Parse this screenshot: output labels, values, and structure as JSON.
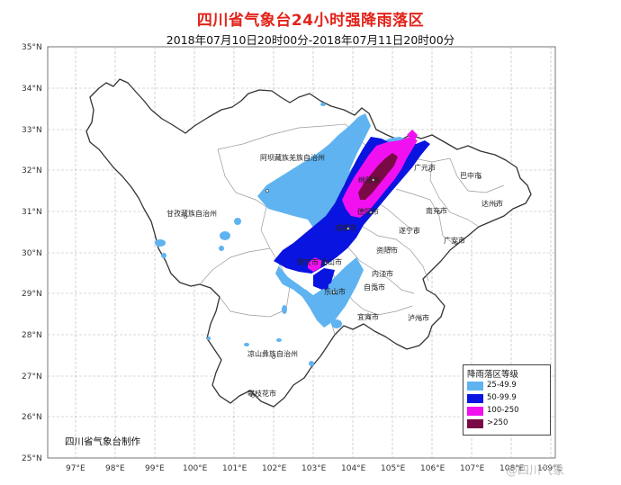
{
  "title": "四川省气象台24小时强降雨落区",
  "subtitle": "2018年07月10日20时00分-2018年07月11日20时00分",
  "credit": "四川省气象台制作",
  "watermark": "@四川气象",
  "lat_labels": [
    "35°N",
    "34°N",
    "33°N",
    "32°N",
    "31°N",
    "30°N",
    "29°N",
    "28°N",
    "27°N",
    "26°N",
    "25°N"
  ],
  "lon_labels": [
    "97°E",
    "98°E",
    "99°E",
    "100°E",
    "101°E",
    "102°E",
    "103°E",
    "104°E",
    "105°E",
    "106°E",
    "107°E",
    "108°E",
    "109°E"
  ],
  "cities": {
    "aba": "阿坝藏族羌族自治州",
    "ganzi": "甘孜藏族自治州",
    "liangshan": "凉山彝族自治州",
    "panzhihua": "攀枝花市",
    "bazhong": "巴中市",
    "guangyuan": "广元市",
    "dazhou": "达州市",
    "nanchong": "南充市",
    "suining": "遂宁市",
    "guangan": "广安市",
    "deyang": "德阳市",
    "chengdu": "成都市",
    "ziyang": "资阳市",
    "meishan": "眉山市",
    "neijiang": "内江市",
    "zigong": "自贡市",
    "leshan": "乐山市",
    "yibin": "宜宾市",
    "luzhou": "泸州市",
    "yaan": "雅安市",
    "mianyang": "绵阳市"
  },
  "legend": {
    "title": "降雨落区等级",
    "items": [
      {
        "label": "25-49.9",
        "color": "#5fb3f0"
      },
      {
        "label": "50-99.9",
        "color": "#0a14e0"
      },
      {
        "label": "100-250",
        "color": "#f010f0"
      },
      {
        "label": ">250",
        "color": "#7a0a45"
      }
    ]
  },
  "colors": {
    "title": "#e2231a",
    "grid": "#b5b5b5",
    "border": "#333333",
    "inner_border": "#9a9a9a"
  }
}
